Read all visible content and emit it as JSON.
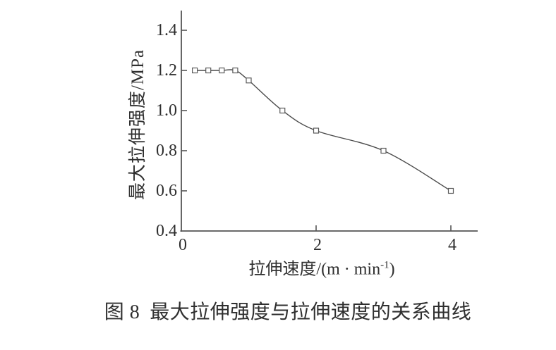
{
  "figure": {
    "caption": {
      "prefix": "图 8",
      "text": "最大拉伸强度与拉伸速度的关系曲线"
    }
  },
  "chart_data": {
    "type": "line",
    "title": "图8 最大拉伸强度与拉伸速度的关系曲线",
    "xlabel": {
      "prefix": "拉伸速度/(m · min",
      "superscript": "-1",
      "suffix": ")"
    },
    "ylabel": "最大拉伸强度/MPa",
    "xlim": [
      0,
      4.4
    ],
    "ylim": [
      0.4,
      1.5
    ],
    "grid": false,
    "legend": "none",
    "marker": "open-square",
    "colors": {
      "line": "#4a4a4a",
      "marker_stroke": "#5a5a5a",
      "axis": "#555555",
      "text": "#2f2f2f"
    },
    "x_ticks": [
      {
        "value": 0,
        "label": "0",
        "tick": false
      },
      {
        "value": 2,
        "label": "2",
        "tick": true
      },
      {
        "value": 4,
        "label": "4",
        "tick": true
      }
    ],
    "y_ticks": [
      {
        "value": 0.4,
        "label": "0.4",
        "tick": false
      },
      {
        "value": 0.6,
        "label": "0.6",
        "tick": true
      },
      {
        "value": 0.8,
        "label": "0.8",
        "tick": true
      },
      {
        "value": 1.0,
        "label": "1.0",
        "tick": true
      },
      {
        "value": 1.2,
        "label": "1.2",
        "tick": true
      },
      {
        "value": 1.4,
        "label": "1.4",
        "tick": true
      }
    ],
    "series": [
      {
        "name": "最大拉伸强度",
        "x": [
          0.2,
          0.4,
          0.6,
          0.8,
          1.0,
          1.5,
          2.0,
          3.0,
          4.0
        ],
        "y": [
          1.2,
          1.2,
          1.2,
          1.2,
          1.15,
          1.0,
          0.9,
          0.8,
          0.6
        ]
      }
    ]
  }
}
